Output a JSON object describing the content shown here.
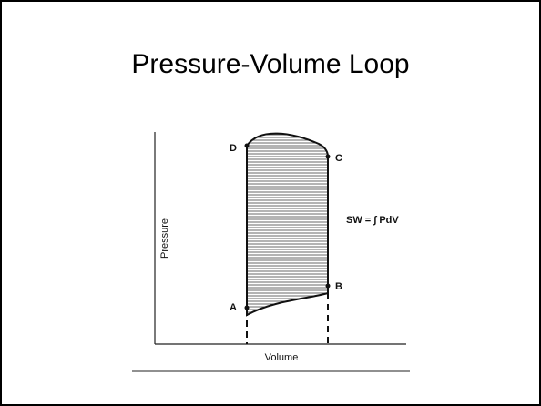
{
  "title": "Pressure-Volume Loop",
  "diagram": {
    "y_axis_label": "Pressure",
    "x_axis_label": "Volume",
    "points": {
      "a": "A",
      "b": "B",
      "c": "C",
      "d": "D"
    },
    "equation": "SW = ∫ PdV"
  }
}
